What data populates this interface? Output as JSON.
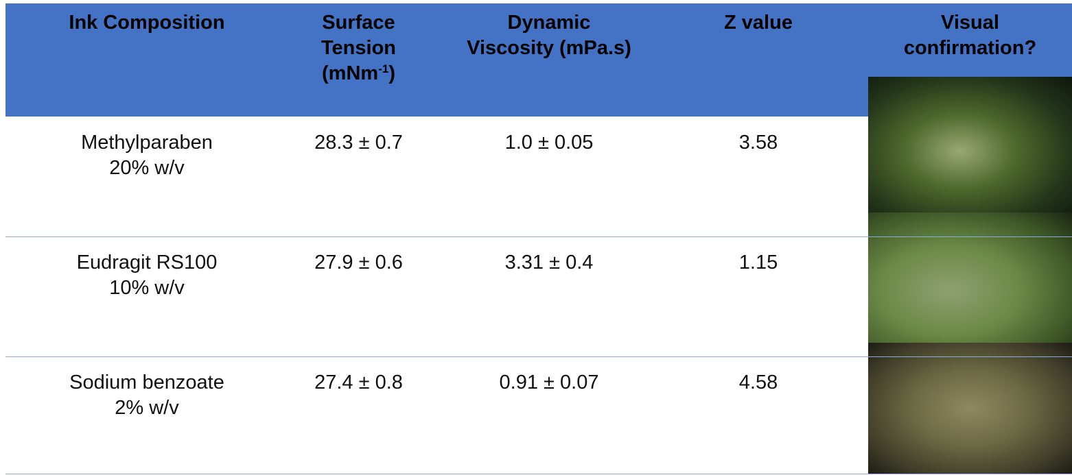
{
  "table": {
    "header": [
      [
        "Ink Composition"
      ],
      [
        "Surface",
        "Tension",
        {
          "text": "(mNm",
          "sup": "-1",
          "tail": ")"
        }
      ],
      [
        "Dynamic",
        "Viscosity (mPa.s)"
      ],
      [
        "Z value"
      ],
      [
        "Visual",
        "confirmation?"
      ]
    ],
    "rows": [
      [
        [
          "Methylparaben",
          "20% w/v"
        ],
        "28.3 ± 0.7",
        "1.0 ± 0.05",
        "3.58"
      ],
      [
        [
          "Eudragit RS100",
          "10% w/v"
        ],
        "27.9 ± 0.6",
        "3.31 ± 0.4",
        "1.15"
      ],
      [
        [
          "Sodium benzoate",
          "2% w/v"
        ],
        "27.4 ± 0.8",
        "0.91 ± 0.07",
        "4.58"
      ]
    ]
  }
}
